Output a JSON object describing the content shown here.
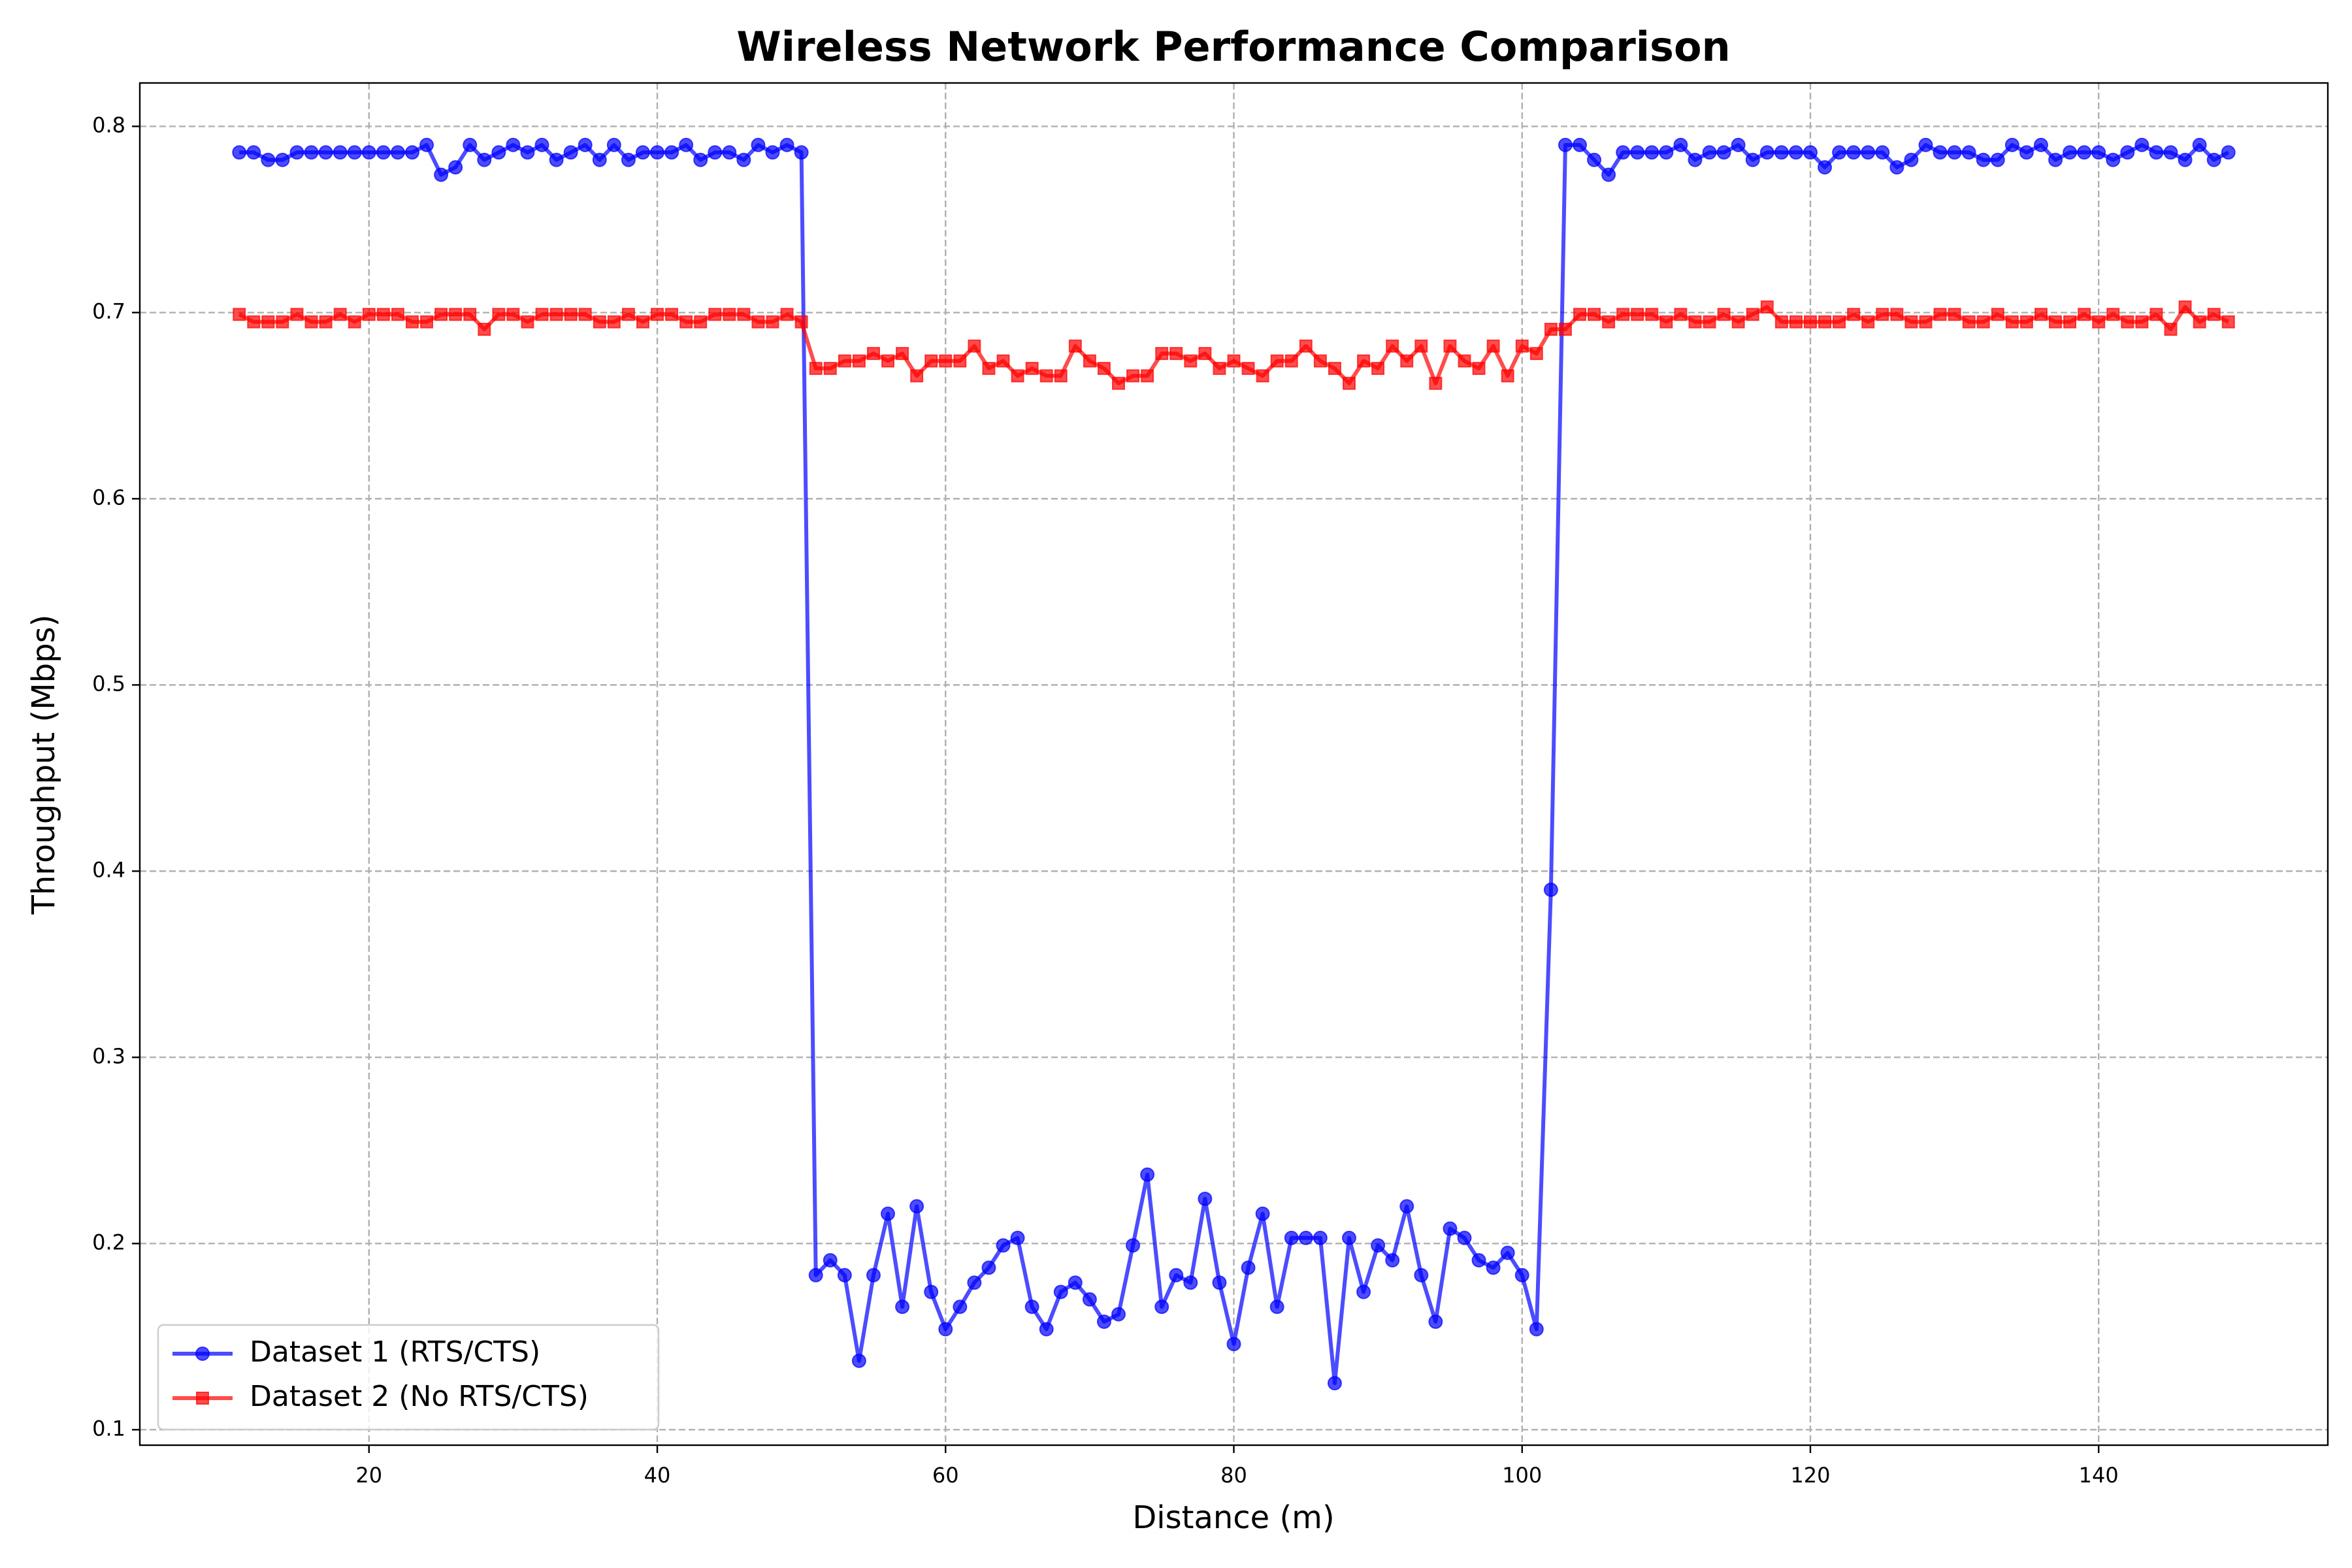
{
  "chart_data": {
    "type": "line",
    "title": "Wireless Network Performance Comparison",
    "x_label": "Distance (m)",
    "y_label": "Throughput (Mbps)",
    "x": [
      11,
      12,
      13,
      14,
      15,
      16,
      17,
      18,
      19,
      20,
      21,
      22,
      23,
      24,
      25,
      26,
      27,
      28,
      29,
      30,
      31,
      32,
      33,
      34,
      35,
      36,
      37,
      38,
      39,
      40,
      41,
      42,
      43,
      44,
      45,
      46,
      47,
      48,
      49,
      50,
      51,
      52,
      53,
      54,
      55,
      56,
      57,
      58,
      59,
      60,
      61,
      62,
      63,
      64,
      65,
      66,
      67,
      68,
      69,
      70,
      71,
      72,
      73,
      74,
      75,
      76,
      77,
      78,
      79,
      80,
      81,
      82,
      83,
      84,
      85,
      86,
      87,
      88,
      89,
      90,
      91,
      92,
      93,
      94,
      95,
      96,
      97,
      98,
      99,
      100,
      101,
      102,
      103,
      104,
      105,
      106,
      107,
      108,
      109,
      110,
      111,
      112,
      113,
      114,
      115,
      116,
      117,
      118,
      119,
      120,
      121,
      122,
      123,
      124,
      125,
      126,
      127,
      128,
      129,
      130,
      131,
      132,
      133,
      134,
      135,
      136,
      137,
      138,
      139,
      140,
      141,
      142,
      143,
      144,
      145,
      146,
      147,
      148,
      149
    ],
    "series": [
      {
        "name": "Dataset 1 (RTS/CTS)",
        "color": "#0000ff",
        "marker": "circle",
        "values": [
          0.786,
          0.786,
          0.782,
          0.782,
          0.786,
          0.786,
          0.786,
          0.786,
          0.786,
          0.786,
          0.786,
          0.786,
          0.786,
          0.79,
          0.774,
          0.778,
          0.79,
          0.782,
          0.786,
          0.79,
          0.786,
          0.79,
          0.782,
          0.786,
          0.79,
          0.782,
          0.79,
          0.782,
          0.786,
          0.786,
          0.786,
          0.79,
          0.782,
          0.786,
          0.786,
          0.782,
          0.79,
          0.786,
          0.79,
          0.786,
          0.183,
          0.191,
          0.183,
          0.137,
          0.183,
          0.216,
          0.166,
          0.22,
          0.174,
          0.154,
          0.166,
          0.179,
          0.187,
          0.199,
          0.203,
          0.166,
          0.154,
          0.174,
          0.179,
          0.17,
          0.158,
          0.162,
          0.199,
          0.237,
          0.166,
          0.183,
          0.179,
          0.224,
          0.179,
          0.146,
          0.187,
          0.216,
          0.166,
          0.203,
          0.203,
          0.203,
          0.125,
          0.203,
          0.174,
          0.199,
          0.191,
          0.22,
          0.183,
          0.158,
          0.208,
          0.203,
          0.191,
          0.187,
          0.195,
          0.183,
          0.154,
          0.39,
          0.79,
          0.79,
          0.782,
          0.774,
          0.786,
          0.786,
          0.786,
          0.786,
          0.79,
          0.782,
          0.786,
          0.786,
          0.79,
          0.782,
          0.786,
          0.786,
          0.786,
          0.786,
          0.778,
          0.786,
          0.786,
          0.786,
          0.786,
          0.778,
          0.782,
          0.79,
          0.786,
          0.786,
          0.786,
          0.782,
          0.782,
          0.79,
          0.786,
          0.79,
          0.782,
          0.786,
          0.786,
          0.786,
          0.782,
          0.786,
          0.79,
          0.786,
          0.786,
          0.782,
          0.79,
          0.782,
          0.786
        ]
      },
      {
        "name": "Dataset 2 (No RTS/CTS)",
        "color": "#ff0000",
        "marker": "square",
        "values": [
          0.699,
          0.695,
          0.695,
          0.695,
          0.699,
          0.695,
          0.695,
          0.699,
          0.695,
          0.699,
          0.699,
          0.699,
          0.695,
          0.695,
          0.699,
          0.699,
          0.699,
          0.691,
          0.699,
          0.699,
          0.695,
          0.699,
          0.699,
          0.699,
          0.699,
          0.695,
          0.695,
          0.699,
          0.695,
          0.699,
          0.699,
          0.695,
          0.695,
          0.699,
          0.699,
          0.699,
          0.695,
          0.695,
          0.699,
          0.695,
          0.67,
          0.67,
          0.674,
          0.674,
          0.678,
          0.674,
          0.678,
          0.666,
          0.674,
          0.674,
          0.674,
          0.682,
          0.67,
          0.674,
          0.666,
          0.67,
          0.666,
          0.666,
          0.682,
          0.674,
          0.67,
          0.662,
          0.666,
          0.666,
          0.678,
          0.678,
          0.674,
          0.678,
          0.67,
          0.674,
          0.67,
          0.666,
          0.674,
          0.674,
          0.682,
          0.674,
          0.67,
          0.662,
          0.674,
          0.67,
          0.682,
          0.674,
          0.682,
          0.662,
          0.682,
          0.674,
          0.67,
          0.682,
          0.666,
          0.682,
          0.678,
          0.691,
          0.691,
          0.699,
          0.699,
          0.695,
          0.699,
          0.699,
          0.699,
          0.695,
          0.699,
          0.695,
          0.695,
          0.699,
          0.695,
          0.699,
          0.703,
          0.695,
          0.695,
          0.695,
          0.695,
          0.695,
          0.699,
          0.695,
          0.699,
          0.699,
          0.695,
          0.695,
          0.699,
          0.699,
          0.695,
          0.695,
          0.699,
          0.695,
          0.695,
          0.699,
          0.695,
          0.695,
          0.699,
          0.695,
          0.699,
          0.695,
          0.695,
          0.699,
          0.691,
          0.703,
          0.695,
          0.699,
          0.695
        ]
      }
    ],
    "xlim": [
      4.1,
      155.9
    ],
    "ylim": [
      0.0917,
      0.8233
    ],
    "xticks": [
      20,
      40,
      60,
      80,
      100,
      120,
      140
    ],
    "yticks": [
      0.1,
      0.2,
      0.3,
      0.4,
      0.5,
      0.6,
      0.7,
      0.8
    ],
    "grid": true,
    "legend": "lower left"
  }
}
